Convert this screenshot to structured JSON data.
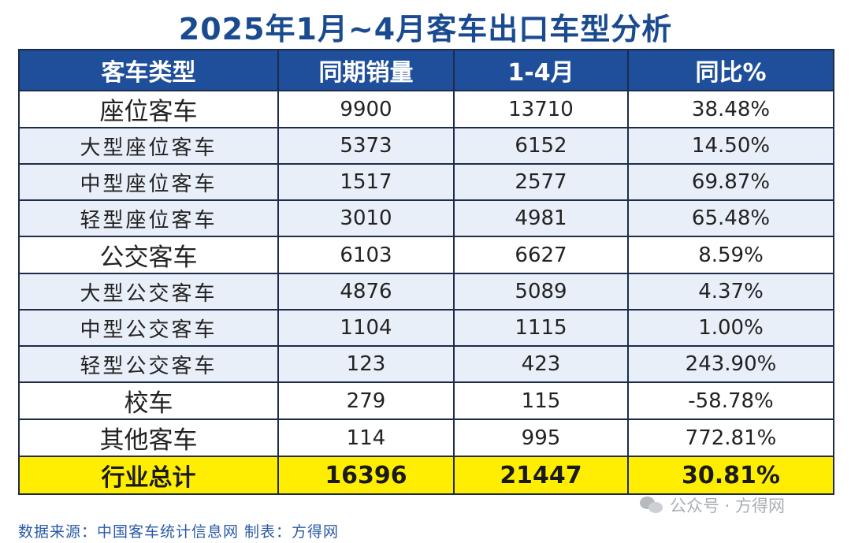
{
  "title": "2025年1月~4月客车出口车型分析",
  "table": {
    "headers": [
      "客车类型",
      "同期销量",
      "1-4月",
      "同比%"
    ],
    "rows": [
      {
        "kind": "main",
        "cells": [
          "座位客车",
          "9900",
          "13710",
          "38.48%"
        ]
      },
      {
        "kind": "sub",
        "cells": [
          "大型座位客车",
          "5373",
          "6152",
          "14.50%"
        ]
      },
      {
        "kind": "sub",
        "cells": [
          "中型座位客车",
          "1517",
          "2577",
          "69.87%"
        ]
      },
      {
        "kind": "sub",
        "cells": [
          "轻型座位客车",
          "3010",
          "4981",
          "65.48%"
        ]
      },
      {
        "kind": "main",
        "cells": [
          "公交客车",
          "6103",
          "6627",
          "8.59%"
        ]
      },
      {
        "kind": "sub",
        "cells": [
          "大型公交客车",
          "4876",
          "5089",
          "4.37%"
        ]
      },
      {
        "kind": "sub",
        "cells": [
          "中型公交客车",
          "1104",
          "1115",
          "1.00%"
        ]
      },
      {
        "kind": "sub",
        "cells": [
          "轻型公交客车",
          "123",
          "423",
          "243.90%"
        ]
      },
      {
        "kind": "main",
        "cells": [
          "校车",
          "279",
          "115",
          "-58.78%"
        ]
      },
      {
        "kind": "main",
        "cells": [
          "其他客车",
          "114",
          "995",
          "772.81%"
        ]
      },
      {
        "kind": "total",
        "cells": [
          "行业总计",
          "16396",
          "21447",
          "30.81%"
        ]
      }
    ]
  },
  "source": "数据来源：中国客车统计信息网  制表：方得网",
  "watermark": {
    "text": "公众号 · 方得网",
    "icon": "wechat-icon"
  },
  "colors": {
    "header_bg": "#1f4f9a",
    "title": "#1a4a8f",
    "sub_row_bg": "#e9eff8",
    "total_bg": "#ffee00"
  }
}
